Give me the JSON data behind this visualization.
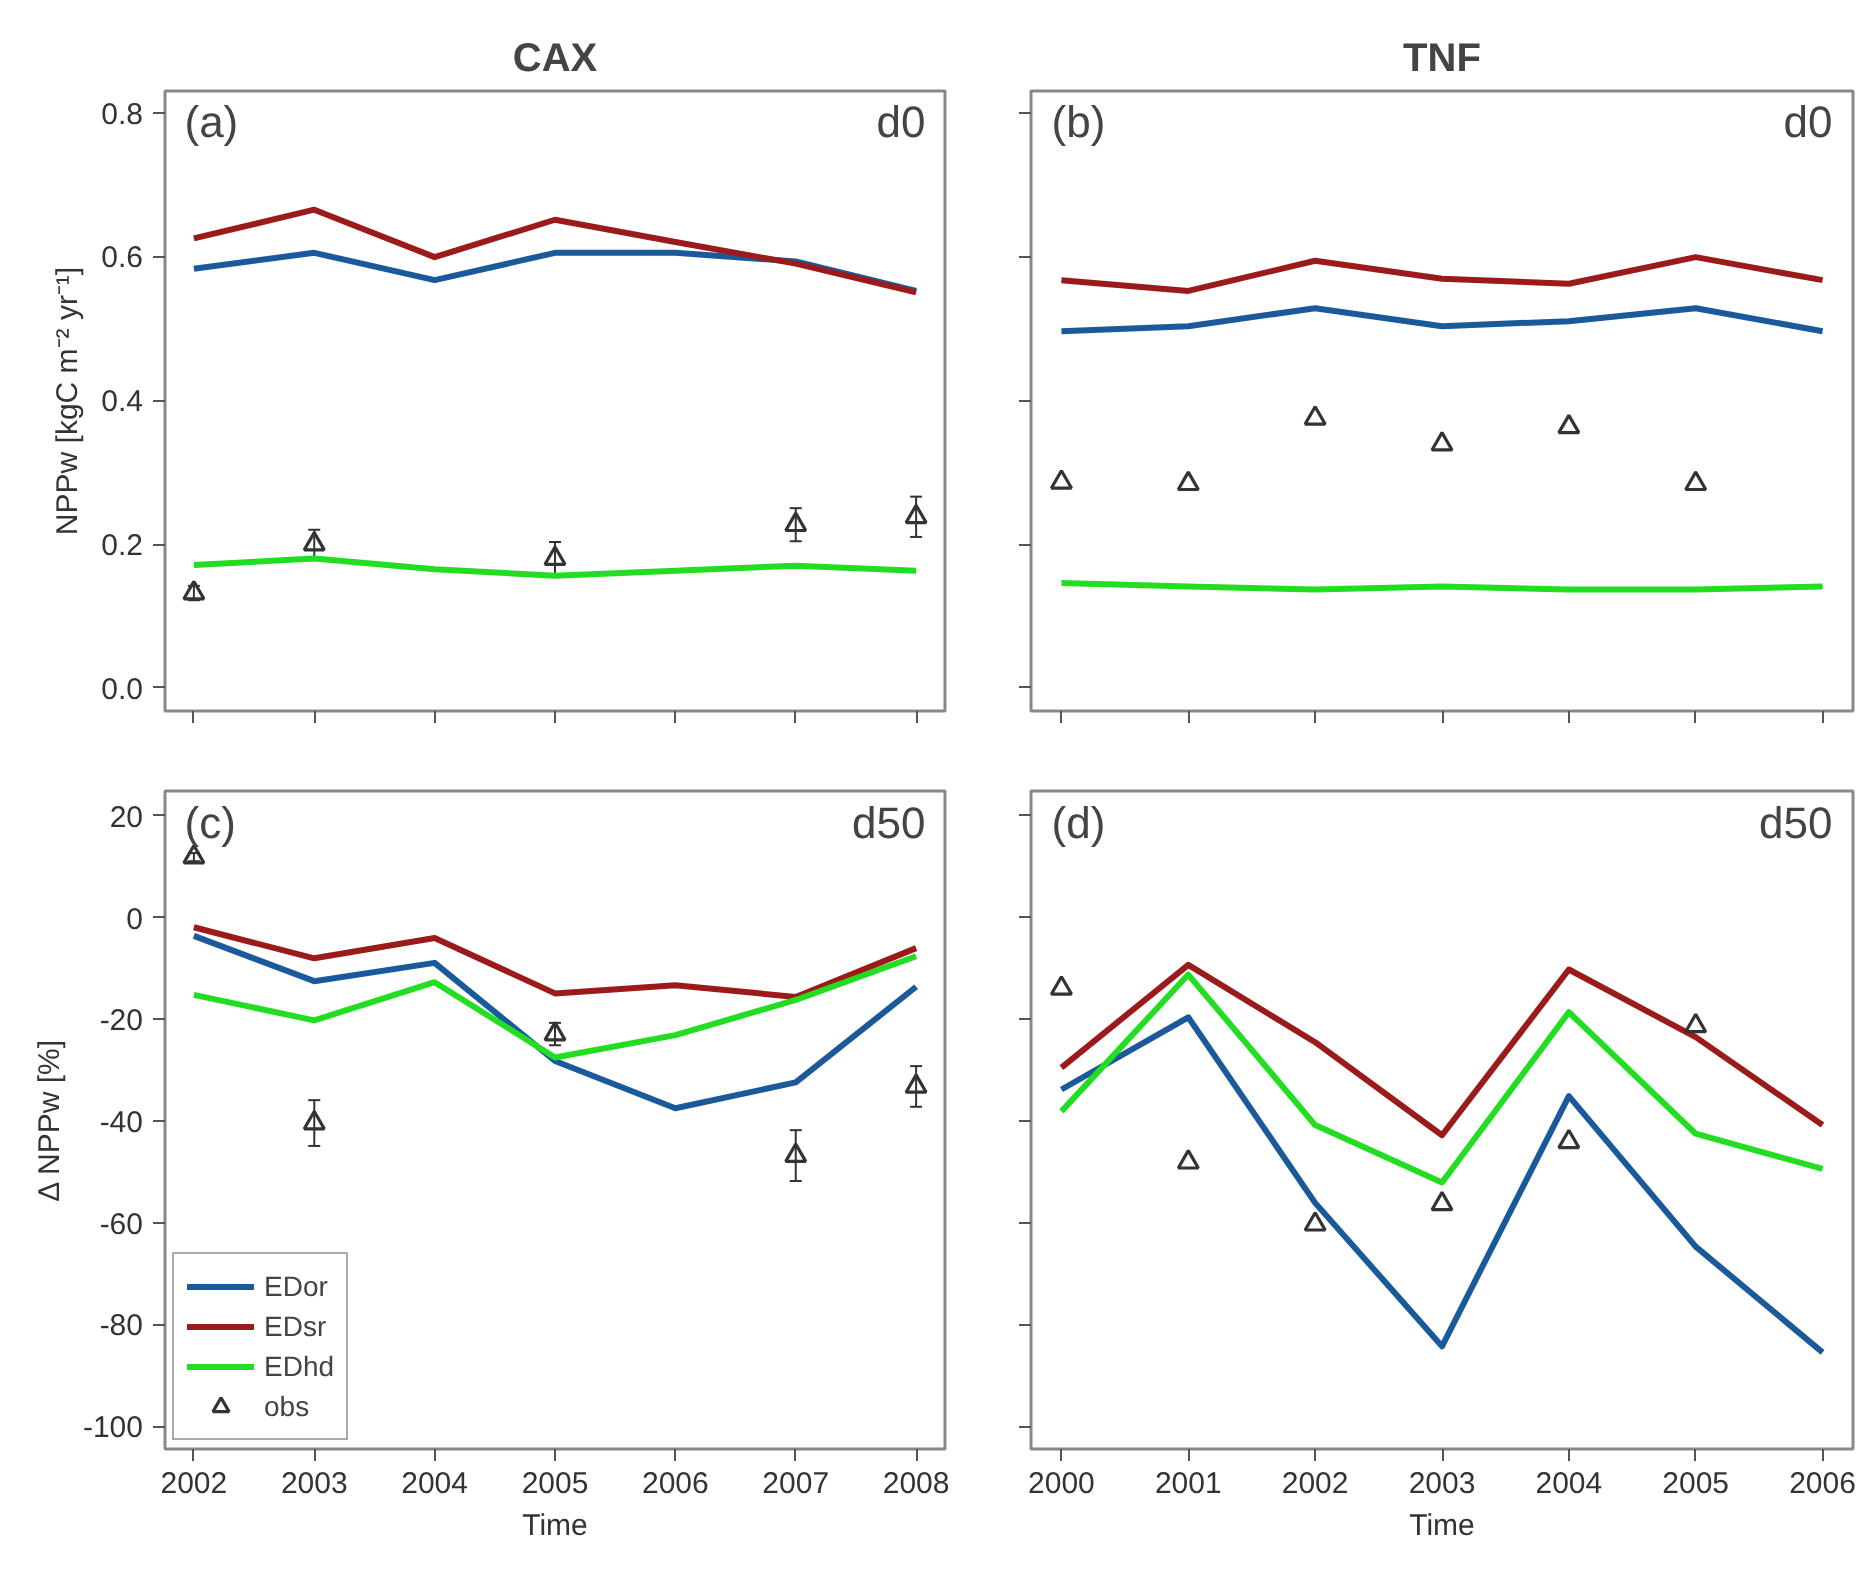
{
  "chart_data": [
    {
      "type": "line",
      "title": "CAX",
      "ylabel": "NPPw [kgC m⁻² yr⁻¹]",
      "annotations": [
        "(a)",
        "d0"
      ],
      "x": [
        2002,
        2003,
        2004,
        2005,
        2006,
        2007,
        2008
      ],
      "xlim": [
        2001.76,
        2008.24
      ],
      "xticks": [
        2002,
        2003,
        2004,
        2005,
        2006,
        2007,
        2008
      ],
      "ylim": [
        -0.032,
        0.83
      ],
      "yticks": [
        {
          "value": 0,
          "label": "0.0"
        },
        0.2,
        0.4,
        0.6,
        0.8
      ],
      "tick_labels": "y",
      "grid": false,
      "legend": false,
      "series": [
        {
          "color": "#1a5a9a",
          "values": [
            0.583,
            0.605,
            0.567,
            0.605,
            0.605,
            0.593,
            0.552
          ]
        },
        {
          "color": "#9b1b1b",
          "values": [
            0.625,
            0.665,
            0.599,
            0.651,
            0.62,
            0.59,
            0.55
          ]
        },
        {
          "color": "#22dd22",
          "values": [
            0.171,
            0.18,
            0.165,
            0.156,
            0.163,
            0.17,
            0.163
          ]
        },
        {
          "type": "scatter",
          "color": "#333333",
          "marker": "triangle",
          "values": [
            0.132,
            0.2,
            null,
            0.18,
            null,
            0.227,
            0.238
          ],
          "errors": [
            0.01,
            0.02,
            null,
            0.023,
            null,
            0.023,
            0.028
          ]
        }
      ]
    },
    {
      "type": "line",
      "title": "TNF",
      "annotations": [
        "(b)",
        "d0"
      ],
      "x": [
        2000,
        2001,
        2002,
        2003,
        2004,
        2005,
        2006
      ],
      "xlim": [
        1999.76,
        2006.24
      ],
      "xticks": [
        2000,
        2001,
        2002,
        2003,
        2004,
        2005,
        2006
      ],
      "ylim": [
        -0.032,
        0.83
      ],
      "yticks": [
        0,
        0.2,
        0.4,
        0.6,
        0.8
      ],
      "tick_labels": false,
      "grid": false,
      "legend": false,
      "series": [
        {
          "color": "#1a5a9a",
          "values": [
            0.496,
            0.503,
            0.528,
            0.503,
            0.51,
            0.528,
            0.496
          ]
        },
        {
          "color": "#9b1b1b",
          "values": [
            0.567,
            0.552,
            0.594,
            0.569,
            0.562,
            0.599,
            0.567
          ]
        },
        {
          "color": "#22dd22",
          "values": [
            0.146,
            0.141,
            0.137,
            0.141,
            0.137,
            0.137,
            0.141
          ]
        },
        {
          "type": "scatter",
          "color": "#333333",
          "marker": "triangle",
          "values": [
            0.286,
            0.284,
            0.375,
            0.339,
            0.363,
            0.284,
            null
          ]
        }
      ]
    },
    {
      "type": "line",
      "xlabel": "Time",
      "ylabel": "Δ NPPw [%]",
      "annotations": [
        "(c)",
        "d50"
      ],
      "x": [
        2002,
        2003,
        2004,
        2005,
        2006,
        2007,
        2008
      ],
      "xlim": [
        2001.76,
        2008.24
      ],
      "xticks": [
        2002,
        2003,
        2004,
        2005,
        2006,
        2007,
        2008
      ],
      "ylim": [
        -104.5,
        24.9
      ],
      "yticks": [
        -100,
        -80,
        -60,
        -40,
        -20,
        0,
        20
      ],
      "grid": false,
      "legend": "bottom left",
      "series": [
        {
          "name": "EDor",
          "color": "#1a5a9a",
          "values": [
            -3.6,
            -12.5,
            -8.9,
            -28.2,
            -37.5,
            -32.4,
            -13.6
          ]
        },
        {
          "name": "EDsr",
          "color": "#9b1b1b",
          "values": [
            -1.9,
            -8.0,
            -4.0,
            -14.9,
            -13.3,
            -15.6,
            -6.0
          ]
        },
        {
          "name": "EDhd",
          "color": "#22dd22",
          "values": [
            -15.2,
            -20.2,
            -12.7,
            -27.5,
            -23.1,
            -16.2,
            -7.6
          ]
        },
        {
          "type": "scatter",
          "name": "obs",
          "color": "#333333",
          "marker": "triangle",
          "values": [
            11.9,
            -40.4,
            null,
            -22.9,
            null,
            -46.8,
            -33.2
          ],
          "errors": [
            0.8,
            4.5,
            null,
            2.2,
            null,
            5,
            4
          ]
        }
      ]
    },
    {
      "type": "line",
      "xlabel": "Time",
      "annotations": [
        "(d)",
        "d50"
      ],
      "x": [
        2000,
        2001,
        2002,
        2003,
        2004,
        2005,
        2006
      ],
      "xlim": [
        1999.76,
        2006.24
      ],
      "xticks": [
        2000,
        2001,
        2002,
        2003,
        2004,
        2005,
        2006
      ],
      "ylim": [
        -104.5,
        24.9
      ],
      "yticks": [
        -100,
        -80,
        -60,
        -40,
        -20,
        0,
        20
      ],
      "tick_labels": "x",
      "grid": false,
      "legend": false,
      "series": [
        {
          "color": "#1a5a9a",
          "values": [
            -33.8,
            -19.6,
            -56.1,
            -84.3,
            -35.1,
            -64.7,
            -85.5
          ]
        },
        {
          "color": "#9b1b1b",
          "values": [
            -29.5,
            -9.3,
            -24.5,
            -42.8,
            -10.2,
            -23.5,
            -40.8
          ]
        },
        {
          "color": "#22dd22",
          "values": [
            -38.1,
            -11.2,
            -40.8,
            -52.1,
            -18.6,
            -42.5,
            -49.4
          ]
        },
        {
          "type": "scatter",
          "color": "#333333",
          "marker": "triangle",
          "values": [
            -13.9,
            -48.1,
            -60.3,
            -56.3,
            -44.1,
            -21.3,
            null
          ]
        }
      ]
    }
  ]
}
